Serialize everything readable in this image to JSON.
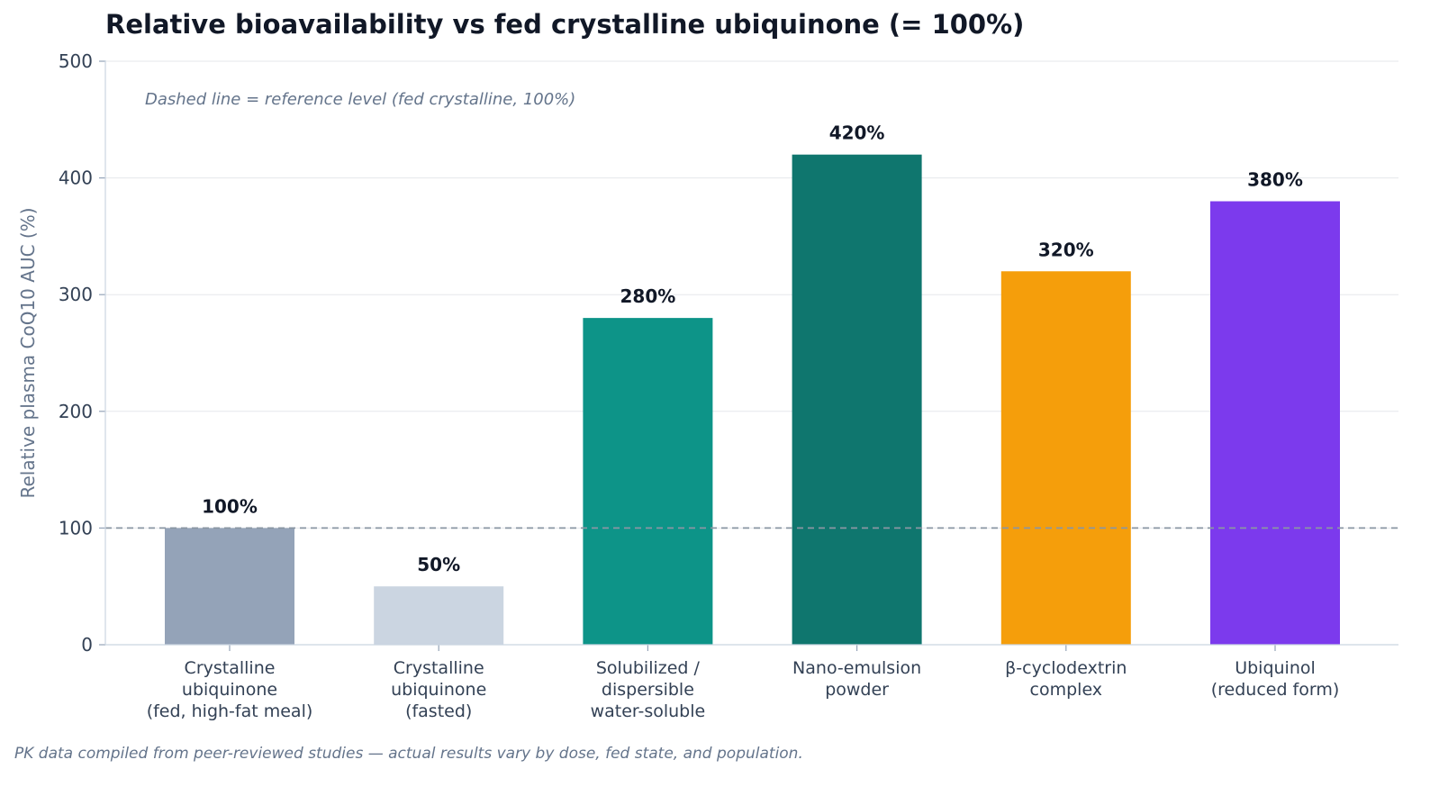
{
  "chart_data": {
    "type": "bar",
    "title": "Relative bioavailability vs fed crystalline ubiquinone (= 100%)",
    "xlabel": "",
    "ylabel": "Relative plasma CoQ10 AUC (%)",
    "ylim": [
      0,
      500
    ],
    "yticks": [
      "0",
      "100",
      "200",
      "300",
      "400",
      "500"
    ],
    "ytick_values": [
      0,
      100,
      200,
      300,
      400,
      500
    ],
    "grid": true,
    "categories": [
      [
        "Crystalline",
        "ubiquinone",
        "(fed, high-fat meal)"
      ],
      [
        "Crystalline",
        "ubiquinone",
        "(fasted)"
      ],
      [
        "Solubilized /",
        "dispersible",
        "water-soluble"
      ],
      [
        "Nano-emulsion",
        "powder"
      ],
      [
        "β-cyclodextrin",
        "complex"
      ],
      [
        "Ubiquinol",
        "(reduced form)"
      ]
    ],
    "values": [
      100,
      50,
      280,
      420,
      320,
      380
    ],
    "data_labels": [
      "100%",
      "50%",
      "280%",
      "420%",
      "320%",
      "380%"
    ],
    "colors": [
      "#94a3b8",
      "#cbd5e1",
      "#0d9488",
      "#0f766e",
      "#f59e0b",
      "#7c3aed"
    ],
    "reference_line": {
      "value": 100,
      "style": "dashed",
      "color": "#8a96a3"
    },
    "annotation": "Dashed line = reference level (fed crystalline, 100%)",
    "footnote": "PK data compiled from peer-reviewed studies — actual results vary by dose, fed state, and population."
  }
}
